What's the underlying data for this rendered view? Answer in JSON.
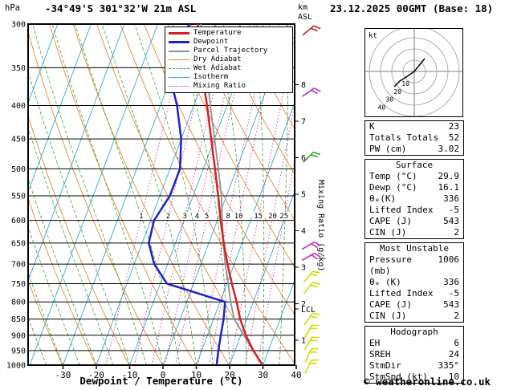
{
  "header": {
    "pressure_unit": "hPa",
    "title": "-34°49'S 301°32'W 21m ASL",
    "datetime": "23.12.2025 00GMT (Base: 18)",
    "altitude_unit_line1": "km",
    "altitude_unit_line2": "ASL"
  },
  "axes": {
    "xlabel": "Dewpoint / Temperature (°C)",
    "temp_ticks": [
      -30,
      -20,
      -10,
      0,
      10,
      20,
      30,
      40
    ],
    "pressure_ticks": [
      300,
      350,
      400,
      450,
      500,
      550,
      600,
      650,
      700,
      750,
      800,
      850,
      900,
      950,
      1000
    ],
    "km_ticks": [
      1,
      2,
      3,
      4,
      5,
      6,
      7,
      8
    ],
    "mixing_ratio_axis_label": "Mixing Ratio (g/kg)",
    "lcl_label": "LCL"
  },
  "legend": {
    "items": [
      {
        "label": "Temperature",
        "color": "#d82020",
        "thickness": 3,
        "style": "solid"
      },
      {
        "label": "Dewpoint",
        "color": "#2020c8",
        "thickness": 3,
        "style": "solid"
      },
      {
        "label": "Parcel Trajectory",
        "color": "#909090",
        "thickness": 2,
        "style": "solid"
      },
      {
        "label": "Dry Adiabat",
        "color": "#ee8830",
        "thickness": 1,
        "style": "solid"
      },
      {
        "label": "Wet Adiabat",
        "color": "#30a830",
        "thickness": 1,
        "style": "dashed"
      },
      {
        "label": "Isotherm",
        "color": "#30a8d8",
        "thickness": 1,
        "style": "solid"
      },
      {
        "label": "Mixing Ratio",
        "color": "#cc30b8",
        "thickness": 1,
        "style": "dotted"
      }
    ]
  },
  "chart_colors": {
    "temperature": "#d82020",
    "dewpoint": "#2020c8",
    "parcel": "#909090",
    "dry_adiabat": "#ee8830",
    "wet_adiabat": "#30a830",
    "isotherm": "#30a8d8",
    "mixing_ratio": "#cc30b8"
  },
  "hodograph": {
    "unit": "kt",
    "rings": [
      10,
      20,
      30,
      40
    ],
    "trace": [
      [
        13,
        -16
      ],
      [
        0,
        0
      ],
      [
        -10,
        7
      ],
      [
        -18,
        12
      ],
      [
        -25,
        19
      ]
    ]
  },
  "wind_barbs": [
    {
      "y": 38,
      "color": "#cc2020",
      "rot": 50
    },
    {
      "y": 115,
      "color": "#c030c0",
      "rot": 55
    },
    {
      "y": 196,
      "color": "#30a830",
      "rot": 45
    },
    {
      "y": 306,
      "color": "#c030c0",
      "rot": 60
    },
    {
      "y": 320,
      "color": "#c030c0",
      "rot": 60
    },
    {
      "y": 345,
      "color": "#d8d800",
      "rot": 40
    },
    {
      "y": 359,
      "color": "#d8d800",
      "rot": 40
    },
    {
      "y": 398,
      "color": "#d8d800",
      "rot": 35
    },
    {
      "y": 413,
      "color": "#d8d800",
      "rot": 30
    },
    {
      "y": 428,
      "color": "#d8d800",
      "rot": 30
    },
    {
      "y": 443,
      "color": "#d8d800",
      "rot": 25
    },
    {
      "y": 457,
      "color": "#d8d800",
      "rot": 25
    }
  ],
  "stats": {
    "sections": [
      {
        "title": null,
        "rows": [
          [
            "K",
            "23"
          ],
          [
            "Totals Totals",
            "52"
          ],
          [
            "PW (cm)",
            "3.02"
          ]
        ]
      },
      {
        "title": "Surface",
        "rows": [
          [
            "Temp (°C)",
            "29.9"
          ],
          [
            "Dewp (°C)",
            "16.1"
          ],
          [
            "θₑ(K)",
            "336"
          ],
          [
            "Lifted Index",
            "-5"
          ],
          [
            "CAPE (J)",
            "543"
          ],
          [
            "CIN (J)",
            "2"
          ]
        ]
      },
      {
        "title": "Most Unstable",
        "rows": [
          [
            "Pressure (mb)",
            "1006"
          ],
          [
            "θₑ (K)",
            "336"
          ],
          [
            "Lifted Index",
            "-5"
          ],
          [
            "CAPE (J)",
            "543"
          ],
          [
            "CIN (J)",
            "2"
          ]
        ]
      },
      {
        "title": "Hodograph",
        "rows": [
          [
            "EH",
            "6"
          ],
          [
            "SREH",
            "24"
          ],
          [
            "StmDir",
            "335°"
          ],
          [
            "StmSpd (kt)",
            "10"
          ]
        ]
      }
    ]
  },
  "footer": {
    "copyright": "© weatheronline.co.uk"
  },
  "chart_data": {
    "type": "skewt_logp_sounding",
    "station": "-34°49'S 301°32'W 21m ASL",
    "valid": "23.12.2025 00GMT (Base: 18)",
    "pressure_axis_hpa": {
      "top": 300,
      "bottom": 1000,
      "scale": "log",
      "ticks": [
        300,
        350,
        400,
        450,
        500,
        550,
        600,
        650,
        700,
        750,
        800,
        850,
        900,
        950,
        1000
      ]
    },
    "temperature_axis_c": {
      "ticks": [
        -30,
        -20,
        -10,
        0,
        10,
        20,
        30,
        40
      ]
    },
    "altitude_ticks_km": [
      1,
      2,
      3,
      4,
      5,
      6,
      7,
      8
    ],
    "pressure_levels_hpa": [
      1000,
      950,
      900,
      850,
      800,
      750,
      700,
      650,
      600,
      550,
      500,
      450,
      400,
      350,
      300
    ],
    "series": [
      {
        "name": "Temperature",
        "values_c": [
          29.9,
          25.5,
          21.5,
          18,
          15,
          11.5,
          8,
          4.5,
          1,
          -2.5,
          -6.5,
          -11,
          -16,
          -22,
          -28
        ]
      },
      {
        "name": "Dewpoint",
        "values_c": [
          16.1,
          15,
          14,
          13,
          11.5,
          -8,
          -14,
          -18,
          -19,
          -17,
          -17,
          -20,
          -25,
          -32,
          -30.5
        ]
      },
      {
        "name": "Parcel Trajectory",
        "values_c": [
          29.9,
          25.4,
          20.9,
          16.2,
          13.2,
          10.4,
          7.3,
          4.4,
          1.5,
          -1.5,
          -5.5,
          -10,
          -15,
          -20.5,
          -27
        ]
      }
    ],
    "mixing_ratio_lines_g_kg": [
      1,
      2,
      3,
      4,
      5,
      8,
      10,
      15,
      20,
      25
    ],
    "lcl_pressure_hpa": 820
  }
}
